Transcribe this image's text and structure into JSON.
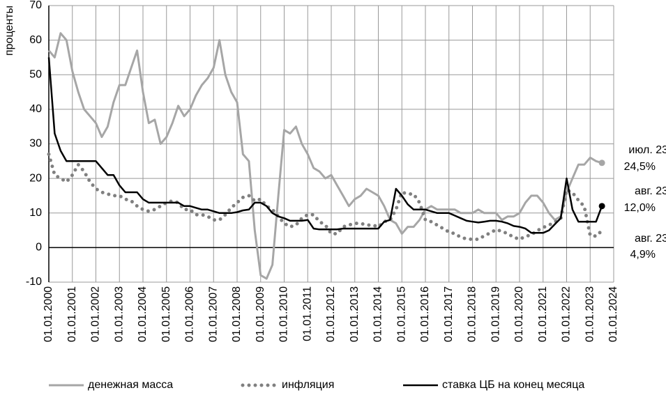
{
  "chart_data": {
    "type": "line",
    "y_label": "проценты",
    "x": [
      "01.01.2000",
      "01.04.2000",
      "01.07.2000",
      "01.10.2000",
      "01.01.2001",
      "01.04.2001",
      "01.07.2001",
      "01.10.2001",
      "01.01.2002",
      "01.04.2002",
      "01.07.2002",
      "01.10.2002",
      "01.01.2003",
      "01.04.2003",
      "01.07.2003",
      "01.10.2003",
      "01.01.2004",
      "01.04.2004",
      "01.07.2004",
      "01.10.2004",
      "01.01.2005",
      "01.04.2005",
      "01.07.2005",
      "01.10.2005",
      "01.01.2006",
      "01.04.2006",
      "01.07.2006",
      "01.10.2006",
      "01.01.2007",
      "01.04.2007",
      "01.07.2007",
      "01.10.2007",
      "01.01.2008",
      "01.04.2008",
      "01.07.2008",
      "01.10.2008",
      "01.01.2009",
      "01.04.2009",
      "01.07.2009",
      "01.10.2009",
      "01.01.2010",
      "01.04.2010",
      "01.07.2010",
      "01.10.2010",
      "01.01.2011",
      "01.04.2011",
      "01.07.2011",
      "01.10.2011",
      "01.01.2012",
      "01.04.2012",
      "01.07.2012",
      "01.10.2012",
      "01.01.2013",
      "01.04.2013",
      "01.07.2013",
      "01.10.2013",
      "01.01.2014",
      "01.04.2014",
      "01.07.2014",
      "01.10.2014",
      "01.01.2015",
      "01.04.2015",
      "01.07.2015",
      "01.10.2015",
      "01.01.2016",
      "01.04.2016",
      "01.07.2016",
      "01.10.2016",
      "01.01.2017",
      "01.04.2017",
      "01.07.2017",
      "01.10.2017",
      "01.01.2018",
      "01.04.2018",
      "01.07.2018",
      "01.10.2018",
      "01.01.2019",
      "01.04.2019",
      "01.07.2019",
      "01.10.2019",
      "01.01.2020",
      "01.04.2020",
      "01.07.2020",
      "01.10.2020",
      "01.01.2021",
      "01.04.2021",
      "01.07.2021",
      "01.10.2021",
      "01.01.2022",
      "01.04.2022",
      "01.07.2022",
      "01.10.2022",
      "01.01.2023",
      "01.04.2023",
      "01.07.2023"
    ],
    "series": [
      {
        "name": "денежная масса",
        "color": "#a6a6a6",
        "style": "solid",
        "values": [
          57,
          55,
          62,
          60,
          51,
          45,
          40,
          38,
          36,
          32,
          35,
          42,
          47,
          47,
          52,
          57,
          45,
          36,
          37,
          30,
          32,
          36,
          41,
          38,
          40,
          44,
          47,
          49,
          52,
          60,
          50,
          45,
          42,
          27,
          25,
          5,
          -8,
          -9,
          -5,
          15,
          34,
          33,
          35,
          30,
          27,
          23,
          22,
          20,
          21,
          18,
          15,
          12,
          14,
          15,
          17,
          16,
          15,
          12,
          8,
          7,
          4,
          6,
          6,
          8,
          11,
          12,
          11,
          11,
          11,
          11,
          10,
          10,
          10,
          11,
          10,
          10,
          10,
          8,
          9,
          9,
          10,
          13,
          15,
          15,
          13,
          10,
          8,
          9,
          16,
          20,
          24,
          24,
          26,
          25,
          24.5
        ]
      },
      {
        "name": "инфляция",
        "color": "#808080",
        "style": "dotted",
        "values": [
          27,
          21,
          20,
          19,
          21,
          24,
          22,
          19,
          17,
          16,
          15.5,
          15,
          15,
          14,
          13.5,
          12,
          11,
          10.5,
          11,
          12,
          13,
          13.5,
          13,
          11,
          11,
          9.5,
          9.5,
          9,
          8,
          8,
          9.5,
          11.5,
          13,
          14.5,
          15,
          13.5,
          14,
          12,
          11,
          9,
          7,
          6,
          6.5,
          8.5,
          9.5,
          9.5,
          7.5,
          6.5,
          4,
          4,
          6,
          6.5,
          7,
          7,
          6.5,
          6.5,
          6,
          7.5,
          8,
          11,
          16,
          15.5,
          15.5,
          13,
          8,
          7.5,
          6.5,
          5.5,
          4.5,
          4,
          3,
          2.5,
          2.4,
          2.4,
          3.4,
          4.2,
          5.2,
          4.7,
          4,
          3,
          2.4,
          3.2,
          3.7,
          4.9,
          5.8,
          6.5,
          7.4,
          8.4,
          16.7,
          15.9,
          13.7,
          11.9,
          3.5,
          3.3,
          4.9
        ]
      },
      {
        "name": "ставка ЦБ на конец месяца",
        "color": "#000000",
        "style": "solid",
        "values": [
          55,
          33,
          28,
          25,
          25,
          25,
          25,
          25,
          25,
          23,
          21,
          21,
          18,
          16,
          16,
          16,
          14,
          13,
          13,
          13,
          13,
          13,
          13,
          12,
          12,
          11.5,
          11,
          11,
          10.5,
          10,
          10,
          10,
          10.25,
          10.75,
          11,
          13,
          13,
          12,
          10,
          9,
          8.5,
          7.75,
          7.75,
          7.75,
          8,
          5.5,
          5.25,
          5.25,
          5.25,
          5.25,
          5.5,
          5.5,
          5.5,
          5.5,
          5.5,
          5.5,
          5.5,
          7.5,
          8,
          17,
          15,
          12.5,
          11,
          11,
          11,
          10.5,
          10,
          10,
          10,
          9.25,
          8.5,
          7.75,
          7.5,
          7.25,
          7.5,
          7.75,
          7.75,
          7.5,
          7,
          6.25,
          6,
          5.5,
          4.25,
          4.25,
          4.25,
          5,
          6.75,
          8.5,
          20,
          11,
          7.5,
          7.5,
          7.5,
          7.5,
          12
        ]
      }
    ],
    "annotations": [
      [
        "июл. 23",
        "24,5%"
      ],
      [
        "авг. 23",
        "12,0%"
      ],
      [
        "авг. 23",
        "4,9%"
      ]
    ],
    "ylim": [
      -10,
      70
    ],
    "yticks": [
      -10,
      0,
      10,
      20,
      30,
      40,
      50,
      60,
      70
    ],
    "xticks": [
      "01.01.2000",
      "01.01.2001",
      "01.01.2002",
      "01.01.2003",
      "01.01.2004",
      "01.01.2005",
      "01.01.2006",
      "01.01.2007",
      "01.01.2008",
      "01.01.2009",
      "01.01.2010",
      "01.01.2011",
      "01.01.2012",
      "01.01.2013",
      "01.01.2014",
      "01.01.2015",
      "01.01.2016",
      "01.01.2017",
      "01.01.2018",
      "01.01.2019",
      "01.01.2020",
      "01.01.2021",
      "01.01.2022",
      "01.01.2023",
      "01.01.2024"
    ],
    "grid": true,
    "legend": "bottom"
  }
}
